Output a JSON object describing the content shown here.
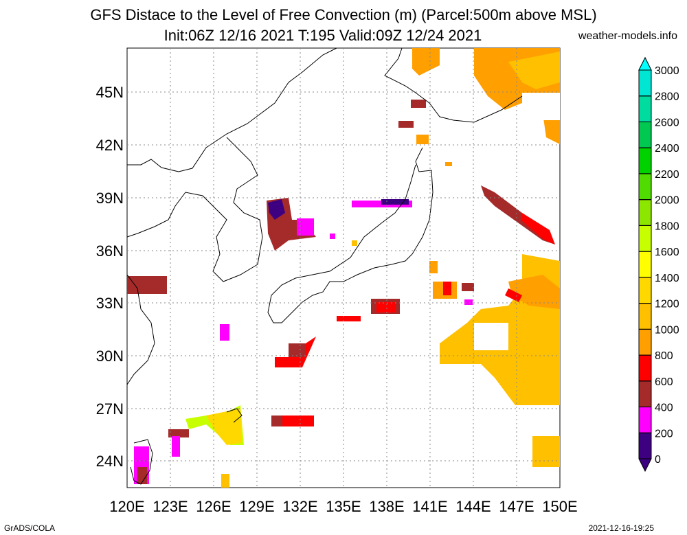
{
  "header": {
    "title_line1": "GFS Distace to the Level of Free Convection (m) (Parcel:500m above MSL)",
    "title_line2": "Init:06Z 12/16 2021 T:195 Valid:09Z 12/24 2021",
    "site": "weather-models.info"
  },
  "footer": {
    "left": "GrADS/COLA",
    "right": "2021-12-16-19:25"
  },
  "map": {
    "lon_labels": [
      "120E",
      "123E",
      "126E",
      "129E",
      "132E",
      "135E",
      "138E",
      "141E",
      "144E",
      "147E",
      "150E"
    ],
    "lat_labels": [
      "45N",
      "42N",
      "39N",
      "36N",
      "33N",
      "30N",
      "27N",
      "24N"
    ]
  },
  "colorbar": {
    "levels": [
      "0",
      "200",
      "400",
      "600",
      "800",
      "1000",
      "1200",
      "1400",
      "1600",
      "1800",
      "2000",
      "2200",
      "2400",
      "2600",
      "2800",
      "3000"
    ],
    "colors": [
      "#3c0080",
      "#ff00ff",
      "#a52a2a",
      "#ff0000",
      "#ff9f00",
      "#ffc000",
      "#ffd800",
      "#ffff00",
      "#c8ff00",
      "#8ce600",
      "#50dc00",
      "#00d200",
      "#00c850",
      "#00dca0",
      "#00e6d2",
      "#00ffff"
    ]
  }
}
